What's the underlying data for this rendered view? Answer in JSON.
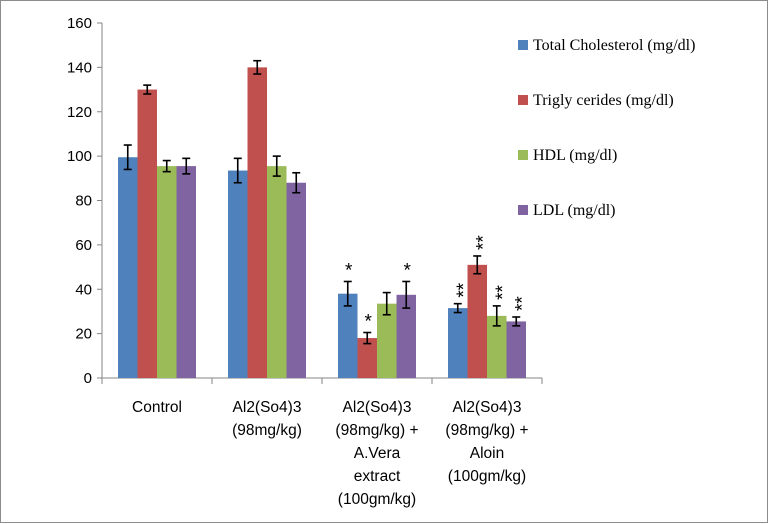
{
  "chart_data": {
    "type": "bar",
    "categories": [
      [
        "Control"
      ],
      [
        "Al2(So4)3",
        "(98mg/kg)"
      ],
      [
        "Al2(So4)3",
        "(98mg/kg) +",
        "A.Vera",
        "extract",
        "(100gm/kg)"
      ],
      [
        "Al2(So4)3",
        "(98mg/kg) +",
        "Aloin",
        "(100gm/kg)"
      ]
    ],
    "series": [
      {
        "name": "Total Cholesterol (mg/dl)",
        "color": "#4f81bd",
        "values": [
          99.5,
          93.5,
          38,
          31.5
        ],
        "errors": [
          5.5,
          5.5,
          5.5,
          2
        ],
        "annotations": [
          "",
          "",
          "*",
          "**"
        ]
      },
      {
        "name": "Trigly cerides (mg/dl)",
        "color": "#c0504d",
        "values": [
          130,
          140,
          18,
          51
        ],
        "errors": [
          2,
          3,
          2.5,
          4
        ],
        "annotations": [
          "",
          "",
          "*",
          "**"
        ]
      },
      {
        "name": "HDL (mg/dl)",
        "color": "#9bbb59",
        "values": [
          95.5,
          95.5,
          33.5,
          28
        ],
        "errors": [
          2.5,
          4.5,
          5,
          4.5
        ],
        "annotations": [
          "",
          "",
          "",
          "**"
        ]
      },
      {
        "name": "LDL (mg/dl)",
        "color": "#8064a2",
        "values": [
          95.5,
          88,
          37.5,
          25.5
        ],
        "errors": [
          3.5,
          4.5,
          6,
          2
        ],
        "annotations": [
          "",
          "",
          "*",
          "**"
        ]
      }
    ],
    "ylim": [
      0,
      160
    ],
    "yticks": [
      "0",
      "20",
      "40",
      "60",
      "80",
      "100",
      "120",
      "140",
      "160"
    ],
    "legend_position": "right",
    "grid": false,
    "title": "",
    "xlabel": "",
    "ylabel": ""
  }
}
